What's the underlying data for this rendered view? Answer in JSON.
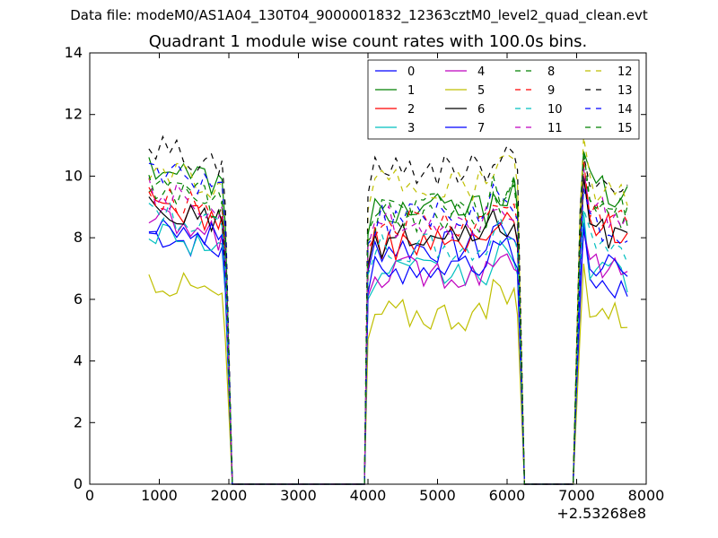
{
  "chart_data": {
    "suptitle": "Data file: modeM0/AS1A04_130T04_9000001832_12363cztM0_level2_quad_clean.evt",
    "title": "Quadrant 1 module wise count rates with 100.0s bins.",
    "type": "line",
    "xlim": [
      0,
      8000
    ],
    "ylim": [
      0,
      14
    ],
    "x_offset_label": "+2.53268e8",
    "x_ticks": [
      0,
      1000,
      2000,
      3000,
      4000,
      5000,
      6000,
      7000,
      8000
    ],
    "y_ticks": [
      0,
      2,
      4,
      6,
      8,
      10,
      12,
      14
    ],
    "legend_position": "upper-right",
    "legend_columns": 4,
    "series": [
      {
        "name": "0",
        "color": "#0000ff",
        "dash": "solid"
      },
      {
        "name": "1",
        "color": "#008000",
        "dash": "solid"
      },
      {
        "name": "2",
        "color": "#ff0000",
        "dash": "solid"
      },
      {
        "name": "3",
        "color": "#00bfbf",
        "dash": "solid"
      },
      {
        "name": "4",
        "color": "#bf00bf",
        "dash": "solid"
      },
      {
        "name": "5",
        "color": "#bfbf00",
        "dash": "solid"
      },
      {
        "name": "6",
        "color": "#000000",
        "dash": "solid"
      },
      {
        "name": "7",
        "color": "#0000ff",
        "dash": "solid"
      },
      {
        "name": "8",
        "color": "#008000",
        "dash": "dashed"
      },
      {
        "name": "9",
        "color": "#ff0000",
        "dash": "dashed"
      },
      {
        "name": "10",
        "color": "#00bfbf",
        "dash": "dashed"
      },
      {
        "name": "11",
        "color": "#bf00bf",
        "dash": "dashed"
      },
      {
        "name": "12",
        "color": "#bfbf00",
        "dash": "dashed"
      },
      {
        "name": "13",
        "color": "#000000",
        "dash": "dashed"
      },
      {
        "name": "14",
        "color": "#0000ff",
        "dash": "dashed"
      },
      {
        "name": "15",
        "color": "#008000",
        "dash": "dashed"
      }
    ],
    "segments": [
      {
        "start": 850,
        "step": 100,
        "count": 11
      },
      {
        "start": 1950,
        "step": 100,
        "count": 2,
        "type": "fall_to_zero"
      },
      {
        "start": 2050,
        "end": 3950,
        "value": 0
      },
      {
        "start": 3950,
        "step": 100,
        "count": 22
      },
      {
        "start": 6150,
        "step": 100,
        "count": 1,
        "type": "fall_to_zero"
      },
      {
        "start": 6250,
        "end": 6950,
        "value": 0
      },
      {
        "start": 7050,
        "step": 100,
        "count": 8
      }
    ],
    "mean_levels": [
      {
        "name": "0",
        "v": [
          8.2,
          7.7,
          6.8
        ]
      },
      {
        "name": "1",
        "v": [
          10.4,
          8.9,
          9.8
        ]
      },
      {
        "name": "2",
        "v": [
          9.2,
          7.8,
          8.7
        ]
      },
      {
        "name": "3",
        "v": [
          8.3,
          6.8,
          7.2
        ]
      },
      {
        "name": "4",
        "v": [
          8.6,
          6.9,
          7.3
        ]
      },
      {
        "name": "5",
        "v": [
          6.7,
          5.5,
          5.9
        ]
      },
      {
        "name": "6",
        "v": [
          9.0,
          7.9,
          8.4
        ]
      },
      {
        "name": "7",
        "v": [
          8.6,
          7.0,
          7.4
        ]
      },
      {
        "name": "8",
        "v": [
          9.7,
          8.7,
          9.1
        ]
      },
      {
        "name": "9",
        "v": [
          9.5,
          8.4,
          9.0
        ]
      },
      {
        "name": "10",
        "v": [
          8.9,
          7.6,
          8.1
        ]
      },
      {
        "name": "11",
        "v": [
          9.5,
          8.5,
          9.1
        ]
      },
      {
        "name": "12",
        "v": [
          10.2,
          9.7,
          9.8
        ]
      },
      {
        "name": "13",
        "v": [
          11.0,
          10.2,
          9.9
        ]
      },
      {
        "name": "14",
        "v": [
          10.3,
          8.6,
          8.5
        ]
      },
      {
        "name": "15",
        "v": [
          9.7,
          9.0,
          9.4
        ]
      }
    ]
  }
}
